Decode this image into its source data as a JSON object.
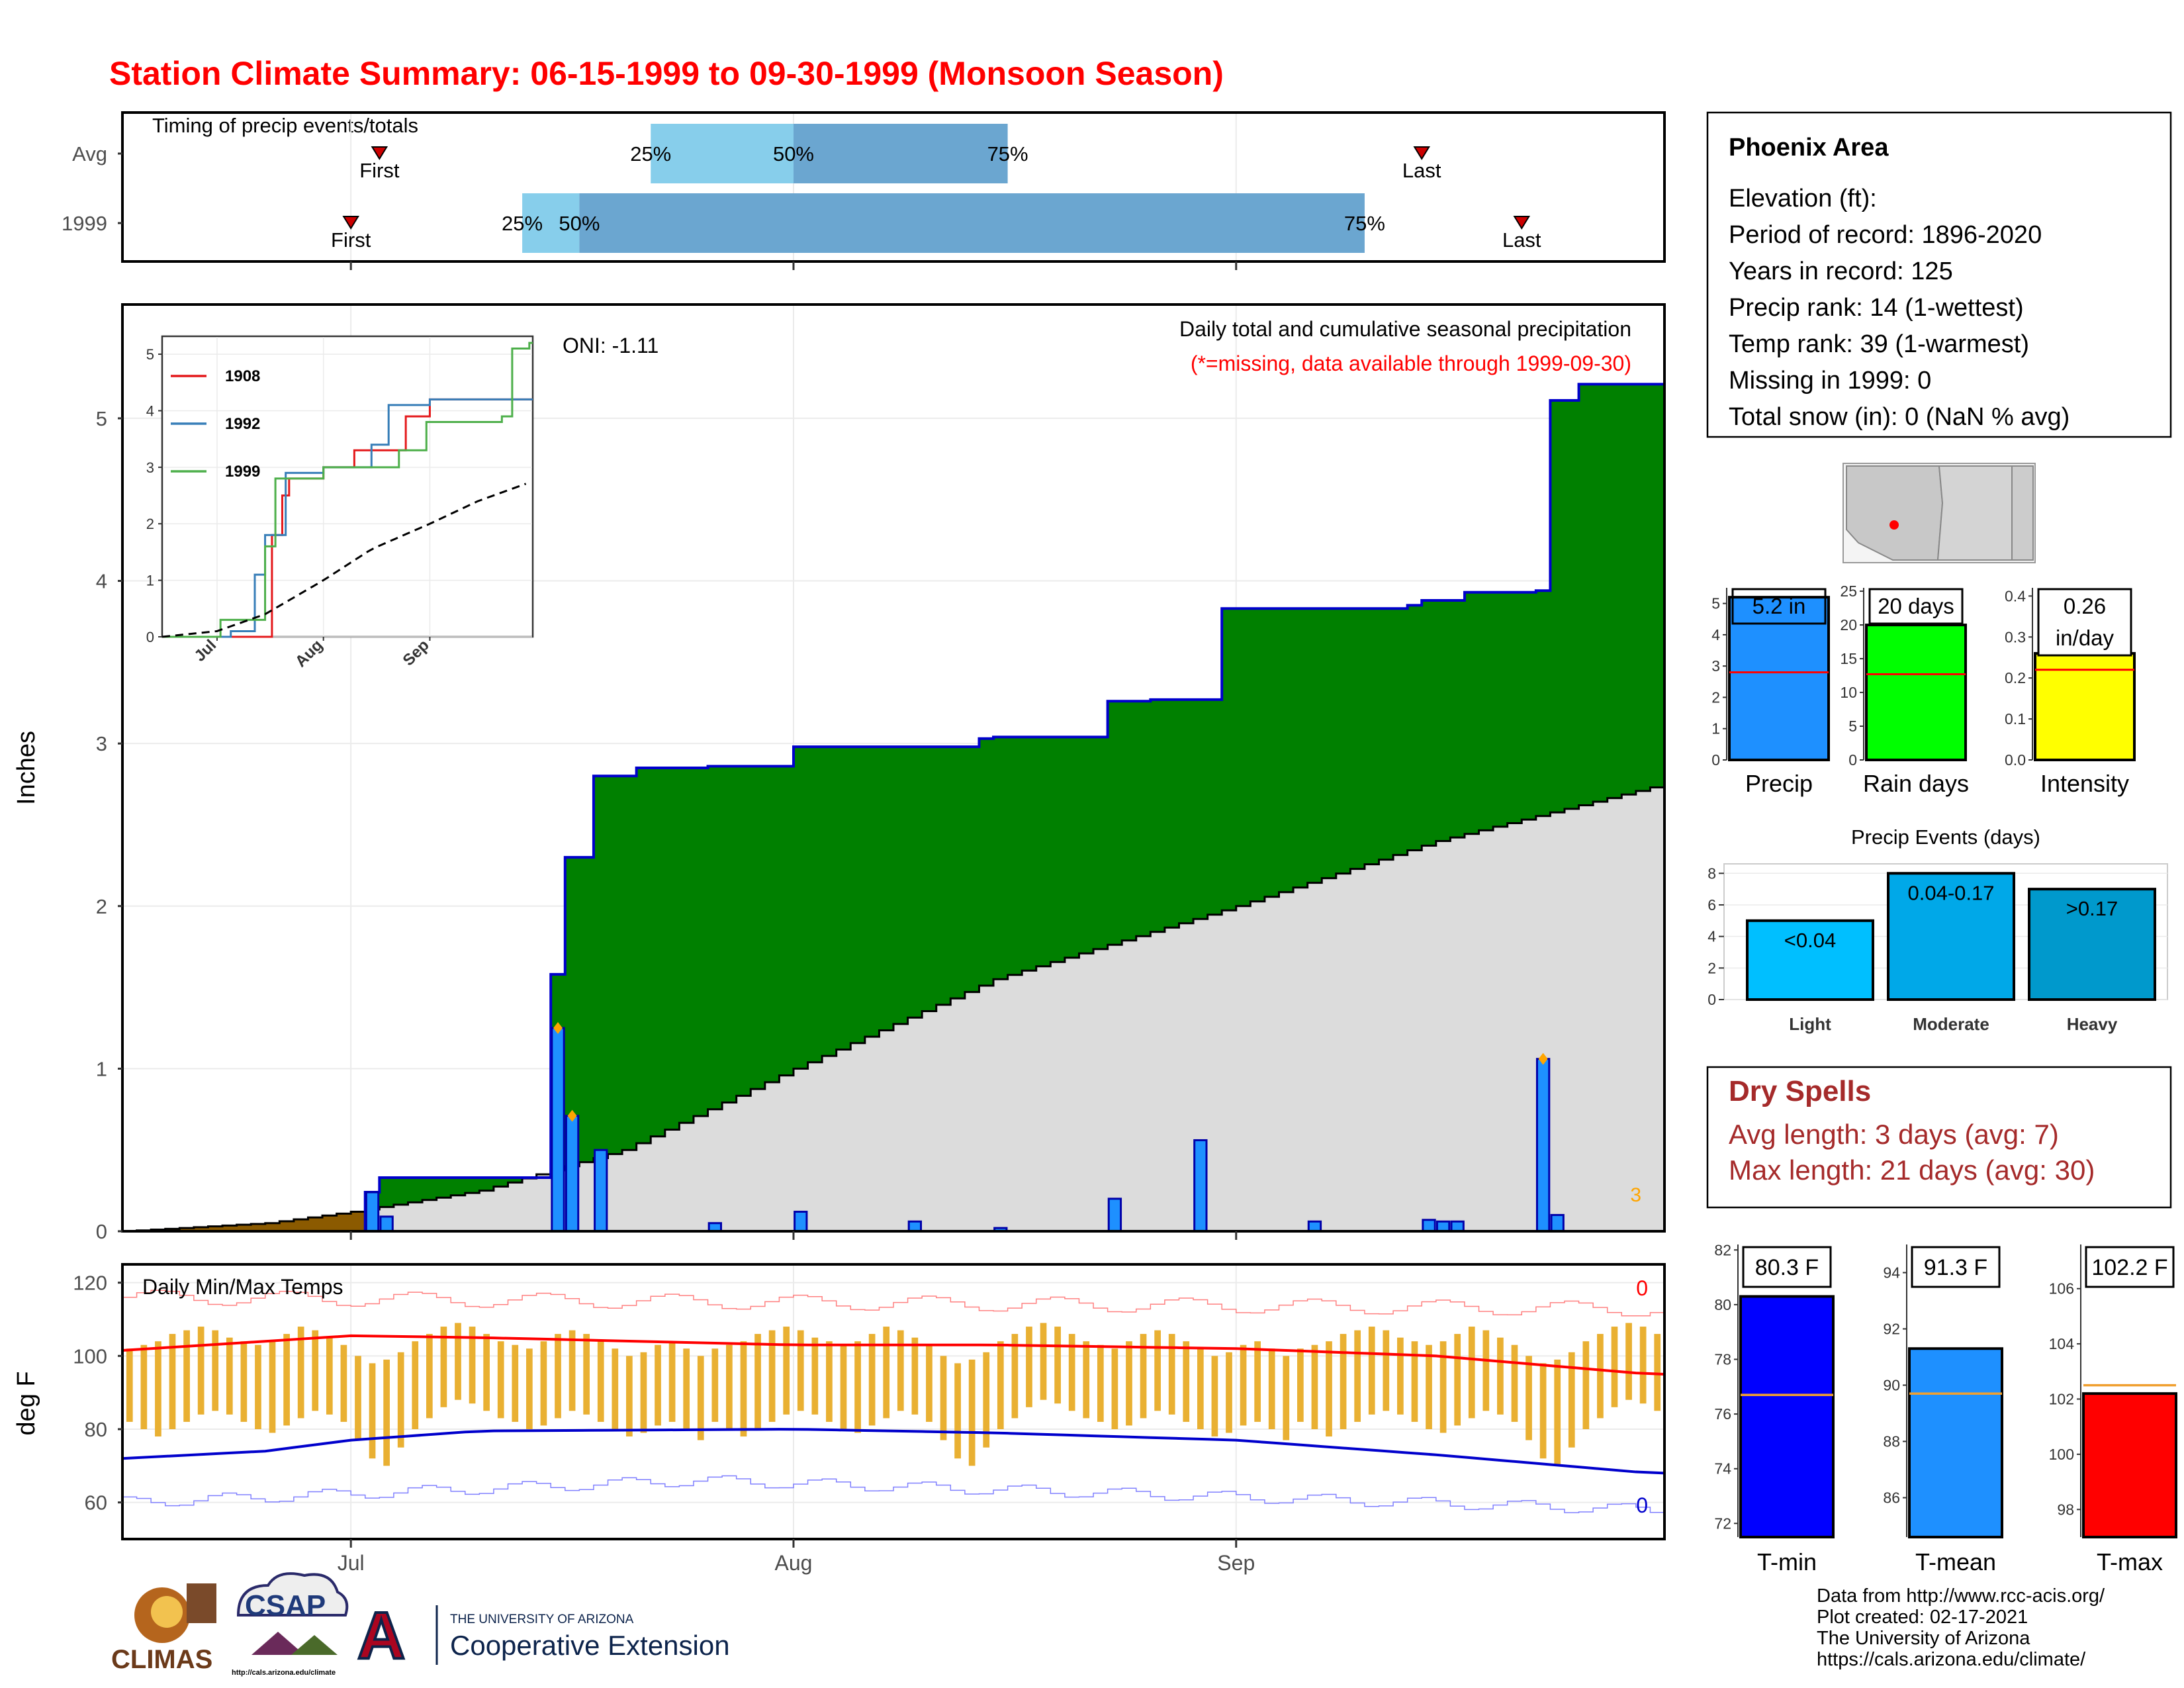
{
  "title": "Station Climate Summary: 06-15-1999 to 09-30-1999 (Monsoon Season)",
  "colors": {
    "title": "#ff0000",
    "cum_fill": "#008000",
    "cum_line": "#0000cc",
    "avg_fill": "#dcdcdc",
    "brown_fill": "#8b5a00",
    "bar_fill": "#1e90ff",
    "tmax": "#ff0000",
    "tmin": "#0000cc",
    "range_bar": "#e9b032",
    "dry_spells": "#a52a2a"
  },
  "timing": {
    "title": "Timing of precip events/totals",
    "rows": [
      {
        "label": "Avg",
        "first_label": "First",
        "last_label": "Last",
        "q25": "25%",
        "q50": "50%",
        "q75": "75%",
        "first": "1999-07-03",
        "p25": "1999-07-22",
        "p50": "1999-08-01",
        "p75": "1999-08-16",
        "last": "1999-09-14"
      },
      {
        "label": "1999",
        "first_label": "First",
        "last_label": "Last",
        "q25": "25%",
        "q50": "50%",
        "q75": "75%",
        "first": "1999-07-01",
        "p25": "1999-07-13",
        "p50": "1999-07-17",
        "p75": "1999-09-10",
        "last": "1999-09-21"
      }
    ]
  },
  "precip_panel": {
    "ylabel": "Inches",
    "oni": "ONI: -1.11",
    "subtitle": "Daily total and cumulative seasonal precipitation",
    "missing_note": "(*=missing, data available through 1999-09-30)",
    "missing_count": "3",
    "yticks": [
      "0",
      "1",
      "2",
      "3",
      "4",
      "5"
    ],
    "xticks": [
      "Jul",
      "Aug",
      "Sep"
    ]
  },
  "inset": {
    "yticks": [
      "0",
      "1",
      "2",
      "3",
      "4",
      "5"
    ],
    "xticks": [
      "Jul",
      "Aug",
      "Sep"
    ],
    "legend": [
      "1908",
      "1992",
      "1999"
    ]
  },
  "temp_panel": {
    "ylabel": "deg F",
    "title": "Daily Min/Max Temps",
    "max_missing": "0",
    "min_missing": "0",
    "yticks": [
      "60",
      "80",
      "100",
      "120"
    ]
  },
  "info": {
    "station": "Phoenix Area",
    "lines": [
      "Elevation (ft):",
      "Period of record: 1896-2020",
      "Years in record: 125",
      "Precip rank: 14 (1-wettest)",
      "Temp rank: 39 (1-warmest)",
      "Missing in 1999: 0",
      "Total snow (in): 0 (NaN % avg)"
    ]
  },
  "summary_bars": [
    {
      "label": "Precip",
      "value": 5.2,
      "avg": 2.8,
      "display": "5.2 in",
      "display2": "",
      "ymax": 5.5,
      "ticks": [
        "0",
        "1",
        "2",
        "3",
        "4",
        "5"
      ],
      "tickvals": [
        0,
        1,
        2,
        3,
        4,
        5
      ],
      "color": "#1e90ff"
    },
    {
      "label": "Rain days",
      "value": 20,
      "avg": 12.7,
      "display": "20 days",
      "display2": "",
      "ymax": 25.5,
      "ticks": [
        "0",
        "5",
        "10",
        "15",
        "20",
        "25"
      ],
      "tickvals": [
        0,
        5,
        10,
        15,
        20,
        25
      ],
      "color": "#00ff00"
    },
    {
      "label": "Intensity",
      "value": 0.26,
      "avg": 0.22,
      "display": "0.26",
      "display2": "in/day",
      "ymax": 0.42,
      "ticks": [
        "0.0",
        "0.1",
        "0.2",
        "0.3",
        "0.4"
      ],
      "tickvals": [
        0,
        0.1,
        0.2,
        0.3,
        0.4
      ],
      "color": "#ffff00"
    }
  ],
  "precip_events": {
    "title": "Precip Events (days)",
    "yticks": [
      "0",
      "2",
      "4",
      "6",
      "8"
    ],
    "bars": [
      {
        "label": "Light",
        "value": 5,
        "text": "<0.04",
        "color": "#00bfff"
      },
      {
        "label": "Moderate",
        "value": 8,
        "text": "0.04-0.17",
        "color": "#00a8e8"
      },
      {
        "label": "Heavy",
        "value": 7,
        "text": ">0.17",
        "color": "#0099cc"
      }
    ]
  },
  "dry_spells": {
    "title": "Dry Spells",
    "avg_line": "Avg length: 3 days (avg: 7)",
    "max_line": "Max length: 21 days (avg: 30)"
  },
  "temp_bars": [
    {
      "label": "T-min",
      "value": 80.3,
      "avg": 76.7,
      "display": "80.3 F",
      "ymin": 71.5,
      "ymax": 82.2,
      "ticks": [
        "72",
        "74",
        "76",
        "78",
        "80",
        "82"
      ],
      "tickvals": [
        72,
        74,
        76,
        78,
        80,
        82
      ],
      "color": "#0000ff"
    },
    {
      "label": "T-mean",
      "value": 91.3,
      "avg": 89.7,
      "display": "91.3 F",
      "ymin": 84.6,
      "ymax": 95.0,
      "ticks": [
        "86",
        "88",
        "90",
        "92",
        "94"
      ],
      "tickvals": [
        86,
        88,
        90,
        92,
        94
      ],
      "color": "#1e90ff"
    },
    {
      "label": "T-max",
      "value": 102.2,
      "avg": 102.5,
      "display": "102.2 F",
      "ymin": 97.0,
      "ymax": 107.6,
      "ticks": [
        "98",
        "100",
        "102",
        "104",
        "106"
      ],
      "tickvals": [
        98,
        100,
        102,
        104,
        106
      ],
      "color": "#ff0000"
    }
  ],
  "credits": [
    "Data from http://www.rcc-acis.org/",
    "Plot created: 02-17-2021",
    "The University of Arizona",
    "https://cals.arizona.edu/climate/"
  ],
  "logos": {
    "climas": "CLIMAS",
    "csap": "CSAP",
    "csap_url": "http://cals.arizona.edu/climate",
    "ua_small": "THE UNIVERSITY OF ARIZONA",
    "ua_big": "Cooperative Extension",
    "ua_letter": "A"
  },
  "chart_data": {
    "type": "area",
    "x_start": "1999-06-15",
    "x_end": "1999-09-30",
    "ylim": [
      0,
      5.7
    ],
    "series": [
      {
        "name": "",
        "kind": "cumulative",
        "x": [
          "1999-07-02",
          "1999-07-03",
          "1999-07-15",
          "1999-07-16",
          "1999-07-17",
          "1999-07-18",
          "1999-07-21",
          "1999-07-26",
          "1999-08-01",
          "1999-08-14",
          "1999-08-15",
          "1999-08-23",
          "1999-08-26",
          "1999-08-31",
          "1999-09-13",
          "1999-09-14",
          "1999-09-15",
          "1999-09-17",
          "1999-09-22",
          "1999-09-23",
          "1999-09-25",
          "1999-09-30"
        ],
        "values": [
          0.24,
          0.33,
          1.58,
          2.3,
          2.3,
          2.8,
          2.85,
          2.86,
          2.98,
          3.03,
          3.04,
          3.26,
          3.27,
          3.83,
          3.85,
          3.88,
          3.88,
          3.93,
          3.94,
          5.11,
          5.21,
          5.21
        ]
      },
      {
        "name": "",
        "kind": "avg_cumulative",
        "x": [
          "1999-06-15",
          "1999-06-25",
          "1999-07-01",
          "1999-07-10",
          "1999-07-20",
          "1999-08-01",
          "1999-08-15",
          "1999-09-01",
          "1999-09-15",
          "1999-09-30"
        ],
        "values": [
          0.0,
          0.05,
          0.12,
          0.25,
          0.5,
          1.0,
          1.55,
          2.0,
          2.4,
          2.73
        ]
      }
    ],
    "daily_precip": {
      "x": [
        "1999-07-02",
        "1999-07-03",
        "1999-07-15",
        "1999-07-16",
        "1999-07-18",
        "1999-07-26",
        "1999-08-01",
        "1999-08-09",
        "1999-08-15",
        "1999-08-23",
        "1999-08-29",
        "1999-09-06",
        "1999-09-14",
        "1999-09-15",
        "1999-09-16",
        "1999-09-22",
        "1999-09-23"
      ],
      "values": [
        0.24,
        0.09,
        1.25,
        0.71,
        0.5,
        0.05,
        0.12,
        0.06,
        0.02,
        0.2,
        0.56,
        0.06,
        0.07,
        0.06,
        0.06,
        1.06,
        0.1
      ],
      "flagged": [
        "1999-07-15",
        "1999-07-16",
        "1999-09-22"
      ]
    },
    "inset_series": [
      {
        "name": "1908",
        "x": [
          "1999-07-15",
          "1999-07-17",
          "1999-07-20",
          "1999-07-22",
          "1999-08-01",
          "1999-08-10",
          "1999-08-25",
          "1999-09-01",
          "1999-09-30"
        ],
        "values": [
          0,
          1.8,
          2.5,
          2.8,
          3.0,
          3.3,
          3.9,
          4.2,
          4.2
        ]
      },
      {
        "name": "1992",
        "x": [
          "1999-07-05",
          "1999-07-12",
          "1999-07-15",
          "1999-07-21",
          "1999-08-01",
          "1999-08-15",
          "1999-08-20",
          "1999-09-01",
          "1999-09-30"
        ],
        "values": [
          0.1,
          1.1,
          1.8,
          2.9,
          3.0,
          3.4,
          4.1,
          4.2,
          4.2
        ]
      },
      {
        "name": "1999",
        "x": [
          "1999-07-02",
          "1999-07-15",
          "1999-07-18",
          "1999-08-01",
          "1999-08-23",
          "1999-08-31",
          "1999-09-22",
          "1999-09-25",
          "1999-09-30"
        ],
        "values": [
          0.3,
          1.6,
          2.8,
          3.0,
          3.3,
          3.8,
          3.9,
          5.1,
          5.2
        ]
      },
      {
        "name": "",
        "kind": "average",
        "x": [
          "1999-06-15",
          "1999-07-01",
          "1999-07-15",
          "1999-08-01",
          "1999-08-15",
          "1999-09-01",
          "1999-09-15",
          "1999-09-30"
        ],
        "values": [
          0,
          0.1,
          0.4,
          1.0,
          1.55,
          2.0,
          2.4,
          2.73
        ]
      }
    ],
    "temps": {
      "ylim": [
        50,
        125
      ],
      "avg_max": {
        "x": [
          "1999-06-15",
          "1999-07-01",
          "1999-07-10",
          "1999-08-01",
          "1999-08-15",
          "1999-09-01",
          "1999-09-15",
          "1999-09-30"
        ],
        "values": [
          101.5,
          105.5,
          105,
          103,
          103,
          102,
          100,
          95
        ]
      },
      "avg_min": {
        "x": [
          "1999-06-15",
          "1999-06-25",
          "1999-07-01",
          "1999-07-10",
          "1999-08-01",
          "1999-08-15",
          "1999-09-01",
          "1999-09-15",
          "1999-09-30"
        ],
        "values": [
          72,
          74,
          77,
          79.5,
          80,
          79,
          77,
          73,
          68
        ]
      },
      "record_max_approx": 116,
      "record_min_approx": 62,
      "daily_max_sample": [
        102,
        103,
        104,
        106,
        107,
        108,
        107,
        105,
        104,
        103,
        104,
        106,
        108,
        107,
        105,
        103,
        100,
        98,
        99,
        101,
        104,
        106,
        108,
        109,
        108,
        106,
        104,
        103,
        102,
        104,
        106,
        107,
        106,
        104,
        102,
        100,
        101,
        103,
        104,
        102,
        100
      ],
      "daily_min_sample": [
        82,
        80,
        78,
        80,
        82,
        84,
        85,
        84,
        82,
        80,
        79,
        81,
        83,
        85,
        84,
        82,
        77,
        72,
        70,
        75,
        80,
        83,
        86,
        88,
        87,
        85,
        83,
        82,
        80,
        81,
        83,
        85,
        84,
        82,
        80,
        78,
        79,
        81,
        82,
        80,
        77
      ]
    }
  }
}
